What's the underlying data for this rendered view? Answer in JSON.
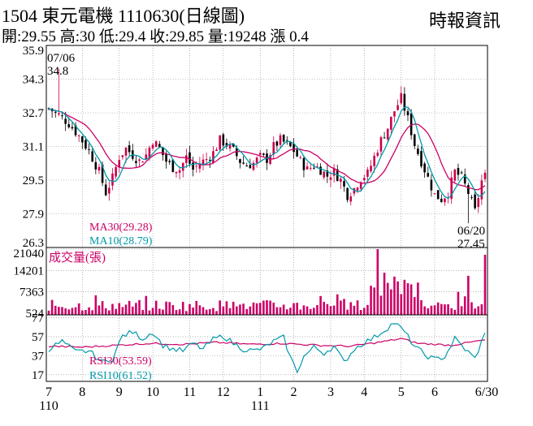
{
  "header": {
    "code": "1504",
    "name": "東元電機",
    "date": "1110630",
    "period": "(日線圖)",
    "open_label": "開:",
    "open": "29.55",
    "high_label": "高:",
    "high": "30",
    "low_label": "低:",
    "low": "29.4",
    "close_label": "收:",
    "close": "29.85",
    "volume_label": "量:",
    "volume": "19248",
    "change_label": "漲",
    "change": "0.4"
  },
  "source": "時報資訊",
  "colors": {
    "up_candle": "#c8004b",
    "down_candle": "#000000",
    "ma30": "#cc0066",
    "ma10": "#0099aa",
    "volume": "#cc0066",
    "rsi30": "#cc0066",
    "rsi10": "#0099aa",
    "grid": "#888888"
  },
  "chart_data": [
    {
      "type": "candlestick",
      "panel": "price",
      "ylim": [
        26.3,
        35.9
      ],
      "yticks": [
        "35.9",
        "34.3",
        "32.7",
        "31.1",
        "29.5",
        "27.9",
        "26.3"
      ],
      "grid": true,
      "annotations": [
        {
          "date": "07/06",
          "value": "34.8",
          "note": "high"
        },
        {
          "date": "06/20",
          "value": "27.45",
          "note": "low"
        }
      ],
      "indicators": [
        {
          "name": "MA30",
          "value": "29.28",
          "text": "MA30(29.28)"
        },
        {
          "name": "MA10",
          "value": "28.79",
          "text": "MA10(28.79)"
        }
      ],
      "close_path": [
        [
          0,
          32.9
        ],
        [
          3,
          32.6
        ],
        [
          6,
          32.2
        ],
        [
          9,
          31.6
        ],
        [
          12,
          30.9
        ],
        [
          15,
          29.9
        ],
        [
          17,
          28.9
        ],
        [
          19,
          29.6
        ],
        [
          21,
          30.6
        ],
        [
          23,
          31.0
        ],
        [
          25,
          30.7
        ],
        [
          27,
          30.4
        ],
        [
          29,
          30.7
        ],
        [
          31,
          31.4
        ],
        [
          33,
          31.0
        ],
        [
          35,
          30.4
        ],
        [
          37,
          30.1
        ],
        [
          39,
          30.0
        ],
        [
          41,
          30.6
        ],
        [
          43,
          30.0
        ],
        [
          45,
          30.3
        ],
        [
          47,
          30.5
        ],
        [
          49,
          30.8
        ],
        [
          51,
          31.4
        ],
        [
          53,
          31.2
        ],
        [
          55,
          30.9
        ],
        [
          57,
          30.4
        ],
        [
          59,
          30.2
        ],
        [
          61,
          30.3
        ],
        [
          63,
          30.6
        ],
        [
          65,
          30.5
        ],
        [
          67,
          31.1
        ],
        [
          69,
          31.4
        ],
        [
          71,
          31.2
        ],
        [
          73,
          30.9
        ],
        [
          75,
          30.4
        ],
        [
          77,
          30.0
        ],
        [
          79,
          30.2
        ],
        [
          81,
          30.0
        ],
        [
          83,
          29.7
        ],
        [
          85,
          29.9
        ],
        [
          87,
          29.5
        ],
        [
          89,
          28.8
        ],
        [
          91,
          29.1
        ],
        [
          93,
          29.6
        ],
        [
          95,
          29.8
        ],
        [
          97,
          30.6
        ],
        [
          99,
          31.4
        ],
        [
          101,
          32.0
        ],
        [
          103,
          32.8
        ],
        [
          105,
          33.4
        ],
        [
          107,
          32.4
        ],
        [
          109,
          31.2
        ],
        [
          111,
          30.4
        ],
        [
          113,
          29.6
        ],
        [
          115,
          28.8
        ],
        [
          117,
          28.6
        ],
        [
          119,
          28.9
        ],
        [
          121,
          29.9
        ],
        [
          123,
          29.6
        ],
        [
          125,
          28.9
        ],
        [
          127,
          28.0
        ],
        [
          129,
          29.45
        ],
        [
          130,
          29.85
        ]
      ]
    },
    {
      "type": "bar",
      "panel": "volume",
      "title": "成交量(張)",
      "ylim": [
        0,
        21040
      ],
      "yticks": [
        "21040",
        "14201",
        "7363",
        "524"
      ],
      "last_value": 19248,
      "peak_value": 21040
    },
    {
      "type": "line",
      "panel": "rsi",
      "ylim": [
        10,
        80
      ],
      "yticks": [
        "77",
        "57",
        "37",
        "17"
      ],
      "indicators": [
        {
          "name": "RSI30",
          "value": "53.59",
          "text": "RSI30(53.59)"
        },
        {
          "name": "RSI10",
          "value": "61.52",
          "text": "RSI10(61.52)"
        }
      ],
      "rsi10_path": [
        [
          0,
          44
        ],
        [
          4,
          52
        ],
        [
          8,
          41
        ],
        [
          12,
          42
        ],
        [
          16,
          30
        ],
        [
          19,
          34
        ],
        [
          22,
          58
        ],
        [
          25,
          62
        ],
        [
          28,
          55
        ],
        [
          31,
          62
        ],
        [
          34,
          48
        ],
        [
          37,
          44
        ],
        [
          40,
          42
        ],
        [
          43,
          50
        ],
        [
          46,
          44
        ],
        [
          49,
          54
        ],
        [
          52,
          58
        ],
        [
          55,
          50
        ],
        [
          58,
          44
        ],
        [
          61,
          42
        ],
        [
          64,
          45
        ],
        [
          67,
          52
        ],
        [
          70,
          56
        ],
        [
          72,
          35
        ],
        [
          74,
          21
        ],
        [
          76,
          36
        ],
        [
          79,
          46
        ],
        [
          82,
          40
        ],
        [
          85,
          47
        ],
        [
          88,
          30
        ],
        [
          91,
          44
        ],
        [
          94,
          51
        ],
        [
          97,
          56
        ],
        [
          100,
          64
        ],
        [
          103,
          72
        ],
        [
          106,
          62
        ],
        [
          109,
          47
        ],
        [
          112,
          38
        ],
        [
          115,
          33
        ],
        [
          118,
          36
        ],
        [
          121,
          55
        ],
        [
          124,
          44
        ],
        [
          127,
          34
        ],
        [
          130,
          61
        ]
      ],
      "rsi30_path": [
        [
          0,
          47
        ],
        [
          10,
          46
        ],
        [
          20,
          48
        ],
        [
          30,
          50
        ],
        [
          40,
          49
        ],
        [
          50,
          51
        ],
        [
          60,
          49
        ],
        [
          70,
          50
        ],
        [
          80,
          48
        ],
        [
          90,
          47
        ],
        [
          100,
          52
        ],
        [
          105,
          55
        ],
        [
          110,
          50
        ],
        [
          120,
          48
        ],
        [
          130,
          53.6
        ]
      ]
    }
  ],
  "x_axis": {
    "months": [
      "7",
      "8",
      "9",
      "10",
      "11",
      "12",
      "1",
      "2",
      "3",
      "4",
      "5",
      "6"
    ],
    "month_positions": [
      0,
      10,
      21,
      31,
      42,
      52,
      63,
      73,
      84,
      94,
      105,
      115
    ],
    "end_label": "6/30",
    "end_position": 130,
    "year_labels": [
      {
        "text": "110",
        "position": 0
      },
      {
        "text": "111",
        "position": 63
      }
    ]
  }
}
